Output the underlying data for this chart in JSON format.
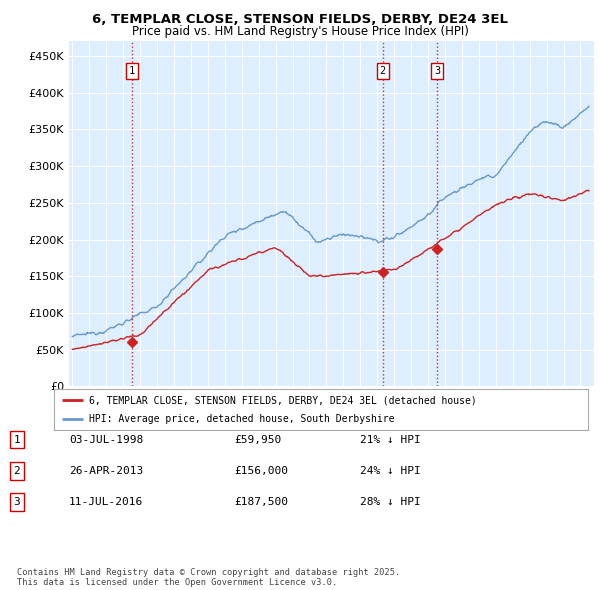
{
  "title_line1": "6, TEMPLAR CLOSE, STENSON FIELDS, DERBY, DE24 3EL",
  "title_line2": "Price paid vs. HM Land Registry's House Price Index (HPI)",
  "ytick_vals": [
    0,
    50000,
    100000,
    150000,
    200000,
    250000,
    300000,
    350000,
    400000,
    450000
  ],
  "ylim": [
    0,
    470000
  ],
  "xlim_start": 1994.8,
  "xlim_end": 2025.8,
  "sale_dates": [
    1998.5,
    2013.33,
    2016.53
  ],
  "sale_prices": [
    59950,
    156000,
    187500
  ],
  "sale_labels": [
    "1",
    "2",
    "3"
  ],
  "vline_color": "#cc0000",
  "red_line_color": "#cc2222",
  "blue_line_color": "#6699cc",
  "chart_bg_color": "#ddeeff",
  "background_color": "#ffffff",
  "grid_color": "#ffffff",
  "legend_label_red": "6, TEMPLAR CLOSE, STENSON FIELDS, DERBY, DE24 3EL (detached house)",
  "legend_label_blue": "HPI: Average price, detached house, South Derbyshire",
  "table_data": [
    {
      "num": "1",
      "date": "03-JUL-1998",
      "price": "£59,950",
      "hpi": "21% ↓ HPI"
    },
    {
      "num": "2",
      "date": "26-APR-2013",
      "price": "£156,000",
      "hpi": "24% ↓ HPI"
    },
    {
      "num": "3",
      "date": "11-JUL-2016",
      "price": "£187,500",
      "hpi": "28% ↓ HPI"
    }
  ],
  "footnote": "Contains HM Land Registry data © Crown copyright and database right 2025.\nThis data is licensed under the Open Government Licence v3.0."
}
